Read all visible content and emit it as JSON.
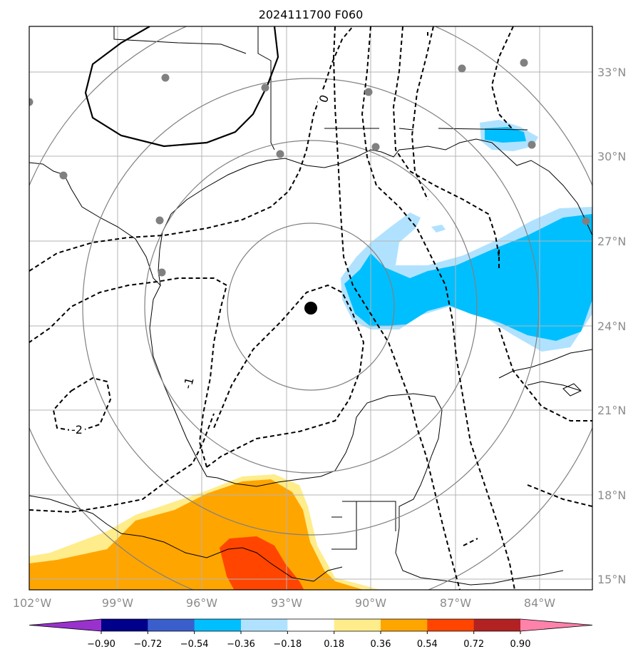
{
  "title": "2024111700 F060",
  "map": {
    "lon_range": [
      -102,
      -83
    ],
    "lat_range": [
      15,
      35
    ],
    "grid": true,
    "lat_labels": [
      "33°N",
      "30°N",
      "27°N",
      "24°N",
      "21°N",
      "18°N",
      "15°N"
    ],
    "lon_labels": [
      "102°W",
      "99°W",
      "96°W",
      "93°W",
      "90°W",
      "87°W",
      "84°W"
    ],
    "center_marker": {
      "lon": -92.0,
      "lat": 24.6,
      "color": "#000000"
    },
    "range_rings": 4,
    "contour_labels": [
      "0",
      "-1",
      "-2"
    ],
    "station_marker_color": "#808080"
  },
  "colorbar": {
    "ticks": [
      "−0.90",
      "−0.72",
      "−0.54",
      "−0.36",
      "−0.18",
      "0.18",
      "0.36",
      "0.54",
      "0.72",
      "0.90"
    ],
    "colors": [
      "#9932cc",
      "#00008b",
      "#3a5fcd",
      "#00bfff",
      "#b0e2ff",
      "#ffffff",
      "#ffec8b",
      "#ffa500",
      "#ff4500",
      "#b22222",
      "#ff82ab"
    ]
  }
}
